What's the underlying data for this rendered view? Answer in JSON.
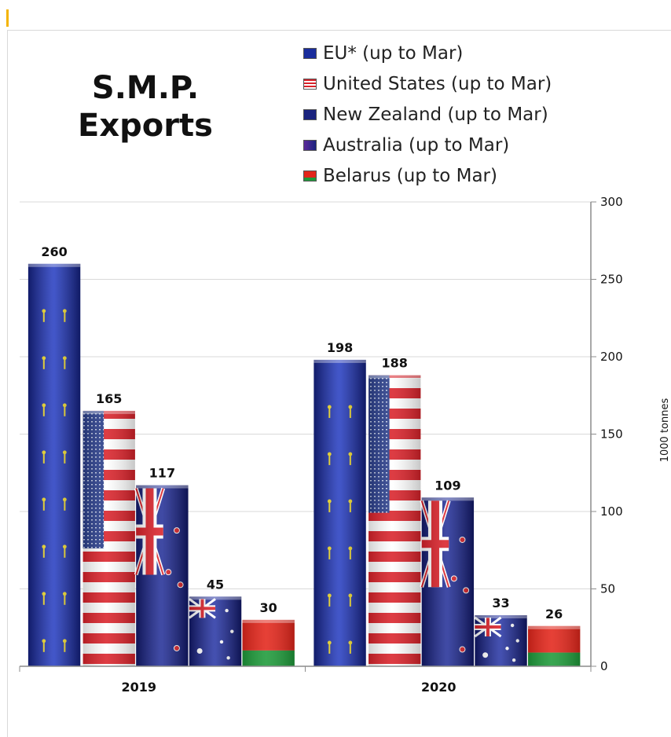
{
  "chart_data": {
    "type": "bar",
    "title": "S.M.P. Exports",
    "title_lines": [
      "S.M.P.",
      "Exports"
    ],
    "categories": [
      "2019",
      "2020"
    ],
    "series": [
      {
        "name": "EU* (up to Mar)",
        "values": [
          260,
          198
        ],
        "flag": "eu",
        "color": "#1a2d9c"
      },
      {
        "name": "United States (up to Mar)",
        "values": [
          165,
          188
        ],
        "flag": "us",
        "color": "#d9222a"
      },
      {
        "name": "New Zealand (up to Mar)",
        "values": [
          117,
          109
        ],
        "flag": "nz",
        "color": "#1a237e"
      },
      {
        "name": "Australia (up to Mar)",
        "values": [
          45,
          33
        ],
        "flag": "au",
        "color": "#1a237e"
      },
      {
        "name": "Belarus (up to Mar)",
        "values": [
          30,
          26
        ],
        "flag": "by",
        "color": "#e3261b"
      }
    ],
    "data_labels": [
      [
        "260",
        "165",
        "117",
        "45",
        "30"
      ],
      [
        "198",
        "188",
        "109",
        "33",
        "26"
      ]
    ],
    "ylabel": "1000 tonnes",
    "ylim": [
      0,
      300
    ],
    "yticks": [
      "0",
      "50",
      "100",
      "150",
      "200",
      "250",
      "300"
    ],
    "y_axis_side": "right",
    "grid": true,
    "legend_position": "top-right"
  }
}
